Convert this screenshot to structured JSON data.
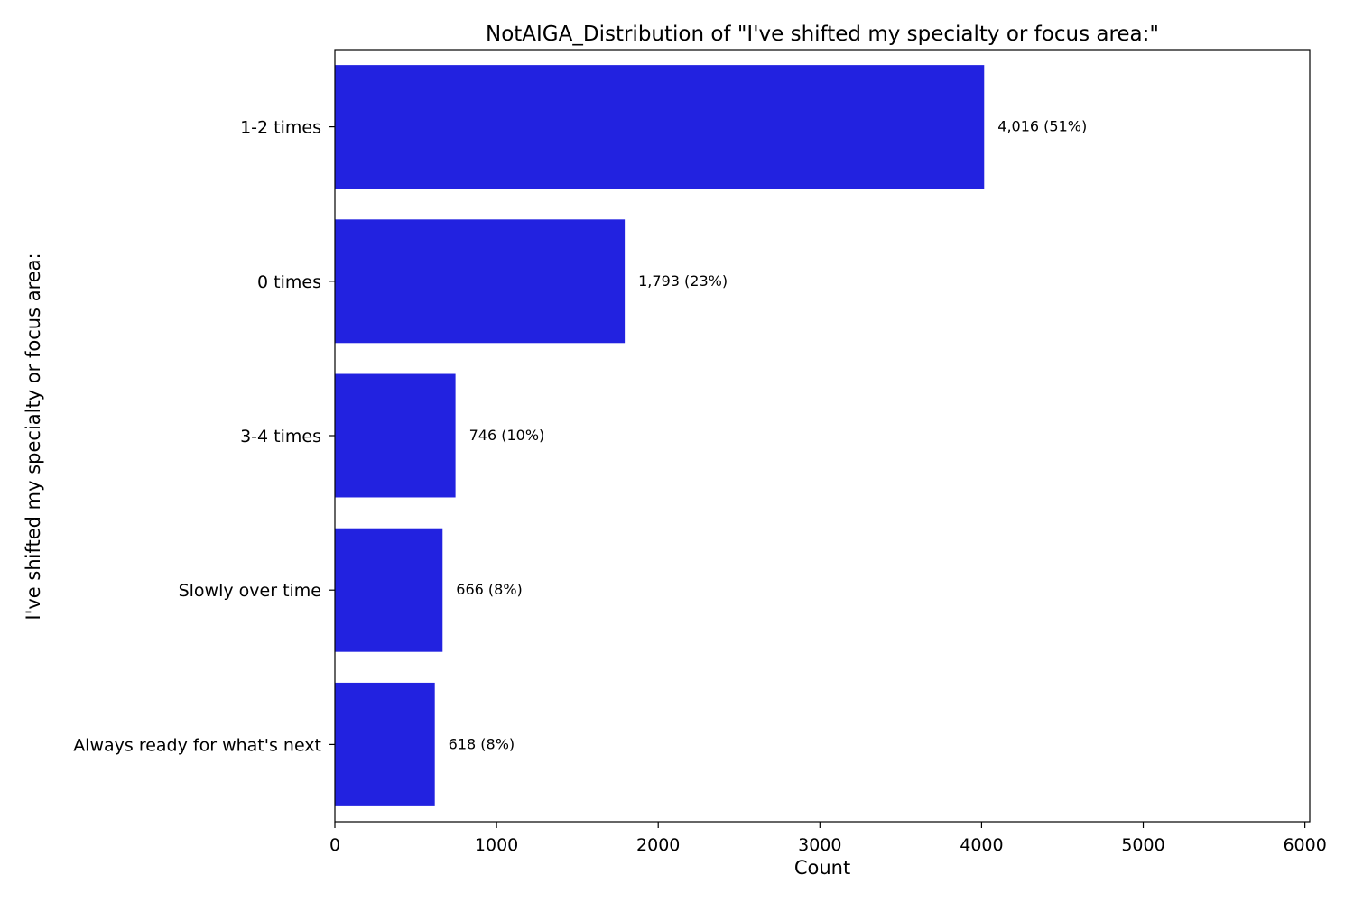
{
  "chart_data": {
    "type": "bar",
    "orientation": "horizontal",
    "title": "NotAIGA_Distribution of \"I've shifted my specialty or focus area:\"",
    "xlabel": "Count",
    "ylabel": "I've shifted my specialty or focus area:",
    "categories": [
      "1-2 times",
      "0 times",
      "3-4 times",
      "Slowly over time",
      "Always ready for what's next"
    ],
    "values": [
      4016,
      1793,
      746,
      666,
      618
    ],
    "data_labels": [
      "4,016 (51%)",
      "1,793 (23%)",
      "746 (10%)",
      "666 (8%)",
      "618 (8%)"
    ],
    "xlim": [
      0,
      6030
    ],
    "xticks": [
      0,
      1000,
      2000,
      3000,
      4000,
      5000,
      6000
    ],
    "xtick_labels": [
      "0",
      "1000",
      "2000",
      "3000",
      "4000",
      "5000",
      "6000"
    ],
    "grid": false,
    "bar_color": "#2222e0"
  }
}
